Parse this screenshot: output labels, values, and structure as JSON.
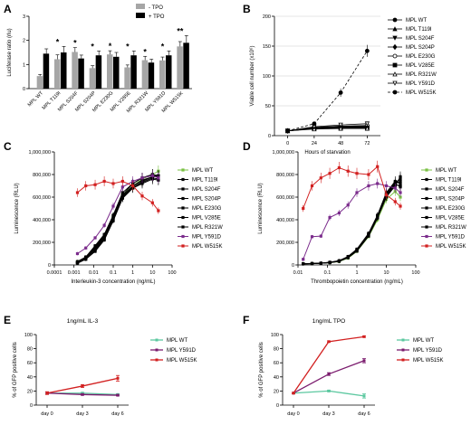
{
  "panels": {
    "A": {
      "letter": "A",
      "type": "bar",
      "ylabel": "Luciferase ratio (rlu)",
      "yticks": [
        "0",
        "1",
        "2",
        "3"
      ],
      "ylim": [
        0,
        3
      ],
      "categories": [
        "MPL WT",
        "MPL T119I",
        "MPL S204F",
        "MPL S204P",
        "MPL E230G",
        "MPL V285E",
        "MPL R321W",
        "MPL Y591D",
        "MPL W515K"
      ],
      "series": [
        {
          "name": "- TPO",
          "color": "#a6a6a6",
          "values": [
            0.52,
            1.22,
            1.52,
            0.85,
            1.42,
            0.88,
            1.18,
            1.17,
            1.75
          ],
          "err": [
            0.07,
            0.18,
            0.18,
            0.1,
            0.15,
            0.1,
            0.16,
            0.14,
            0.2
          ]
        },
        {
          "name": "+ TPO",
          "color": "#000000",
          "values": [
            1.45,
            1.5,
            1.25,
            1.38,
            1.32,
            1.38,
            1.08,
            1.38,
            1.9
          ],
          "err": [
            0.2,
            0.25,
            0.14,
            0.18,
            0.18,
            0.18,
            0.14,
            0.18,
            0.3
          ]
        }
      ],
      "stars": [
        "",
        "*",
        "*",
        "*",
        "*",
        "*",
        "*",
        "*",
        "**"
      ]
    },
    "B": {
      "letter": "B",
      "type": "line",
      "ylabel": "Viable cell number (x10⁶)",
      "xlabel": "Hours of starvation",
      "xticks": [
        "0",
        "24",
        "48",
        "72"
      ],
      "yticks": [
        "0",
        "50",
        "100",
        "150",
        "200"
      ],
      "x": [
        0,
        24,
        48,
        72
      ],
      "xlim": [
        -12,
        84
      ],
      "ylim": [
        0,
        200
      ],
      "series": [
        {
          "name": "MPL WT",
          "marker": "circle",
          "dash": false,
          "values": [
            8,
            12,
            14,
            15
          ]
        },
        {
          "name": "MPL T119I",
          "marker": "triangle",
          "dash": false,
          "values": [
            8,
            13,
            15,
            16
          ]
        },
        {
          "name": "MPL S204F",
          "marker": "triangle-down",
          "dash": false,
          "values": [
            8,
            12,
            13,
            14
          ]
        },
        {
          "name": "MPL S204P",
          "marker": "diamond",
          "dash": false,
          "values": [
            8,
            13,
            14,
            15
          ]
        },
        {
          "name": "MPL E230G",
          "marker": "circle-open",
          "dash": false,
          "values": [
            8,
            14,
            16,
            17
          ]
        },
        {
          "name": "MPL V285E",
          "marker": "square",
          "dash": false,
          "values": [
            8,
            12,
            13,
            13
          ]
        },
        {
          "name": "MPL R321W",
          "marker": "triangle-open",
          "dash": false,
          "values": [
            8,
            11,
            12,
            12
          ]
        },
        {
          "name": "MPL Y591D",
          "marker": "triangle-down-open",
          "dash": false,
          "values": [
            8,
            15,
            18,
            20
          ]
        },
        {
          "name": "MPL W515K",
          "marker": "circle",
          "dash": true,
          "values": [
            8,
            20,
            72,
            142
          ],
          "err": [
            1,
            2,
            7,
            10
          ]
        }
      ]
    },
    "C": {
      "letter": "C",
      "type": "line",
      "ylabel": "Luminescence (RLU)",
      "xlabel": "Interleukin-3 concentration (ng/mL)",
      "xscale": "log",
      "xticks": [
        "0.0001",
        "0.001",
        "0.01",
        "0.1",
        "1",
        "10",
        "100"
      ],
      "yticks": [
        "0",
        "200,000",
        "400,000",
        "600,000",
        "800,000",
        "1,000,000"
      ],
      "x": [
        0.0015,
        0.004,
        0.012,
        0.035,
        0.1,
        0.3,
        1,
        3,
        10,
        20
      ],
      "ylim": [
        0,
        1000000
      ],
      "series": [
        {
          "name": "MPL WT",
          "color": "#7ac143",
          "values": [
            30000,
            60000,
            150000,
            250000,
            420000,
            620000,
            700000,
            760000,
            800000,
            830000
          ]
        },
        {
          "name": "MPL T119I",
          "color": "#000000",
          "values": [
            20000,
            60000,
            140000,
            240000,
            410000,
            600000,
            690000,
            740000,
            780000,
            790000
          ]
        },
        {
          "name": "MPL S204F",
          "color": "#000000",
          "values": [
            25000,
            70000,
            160000,
            260000,
            430000,
            620000,
            720000,
            770000,
            800000,
            780000
          ]
        },
        {
          "name": "MPL S204P",
          "color": "#000000",
          "values": [
            20000,
            50000,
            130000,
            230000,
            400000,
            600000,
            680000,
            730000,
            770000,
            760000
          ]
        },
        {
          "name": "MPL E230G",
          "color": "#000000",
          "values": [
            30000,
            70000,
            170000,
            270000,
            440000,
            640000,
            720000,
            770000,
            800000,
            790000
          ]
        },
        {
          "name": "MPL V285E",
          "color": "#000000",
          "values": [
            20000,
            60000,
            150000,
            250000,
            420000,
            610000,
            700000,
            750000,
            780000,
            780000
          ]
        },
        {
          "name": "MPL R321W",
          "color": "#000000",
          "values": [
            15000,
            50000,
            120000,
            220000,
            390000,
            590000,
            680000,
            720000,
            760000,
            750000
          ]
        },
        {
          "name": "MPL Y591D",
          "color": "#7b2c8c",
          "values": [
            100000,
            150000,
            240000,
            350000,
            520000,
            690000,
            740000,
            770000,
            790000,
            770000
          ]
        },
        {
          "name": "MPL W515K",
          "color": "#d22020",
          "values": [
            640000,
            700000,
            710000,
            740000,
            720000,
            740000,
            700000,
            610000,
            550000,
            480000
          ]
        }
      ]
    },
    "D": {
      "letter": "D",
      "type": "line",
      "ylabel": "Luminescence (RLU)",
      "xlabel": "Thrombopoietin concentration (ng/mL)",
      "xscale": "log",
      "xticks": [
        "0.01",
        "0.1",
        "1",
        "10",
        "100"
      ],
      "yticks": [
        "0",
        "200,000",
        "400,000",
        "600,000",
        "800,000",
        "1,000,000"
      ],
      "x": [
        0.015,
        0.03,
        0.06,
        0.12,
        0.25,
        0.5,
        1,
        2.5,
        5,
        10,
        20,
        30
      ],
      "ylim": [
        0,
        1000000
      ],
      "series": [
        {
          "name": "MPL WT",
          "color": "#7ac143",
          "values": [
            10000,
            12000,
            15000,
            20000,
            30000,
            60000,
            120000,
            250000,
            400000,
            580000,
            650000,
            600000
          ]
        },
        {
          "name": "MPL T119I",
          "color": "#000000",
          "values": [
            10000,
            12000,
            15000,
            22000,
            35000,
            70000,
            130000,
            270000,
            430000,
            620000,
            720000,
            690000
          ]
        },
        {
          "name": "MPL S204F",
          "color": "#000000",
          "values": [
            10000,
            12000,
            16000,
            24000,
            38000,
            75000,
            140000,
            280000,
            440000,
            640000,
            740000,
            720000
          ]
        },
        {
          "name": "MPL S204P",
          "color": "#000000",
          "values": [
            10000,
            12000,
            15000,
            21000,
            33000,
            65000,
            125000,
            260000,
            420000,
            610000,
            710000,
            700000
          ]
        },
        {
          "name": "MPL E230G",
          "color": "#000000",
          "values": [
            10000,
            12000,
            16000,
            23000,
            36000,
            72000,
            135000,
            275000,
            430000,
            630000,
            730000,
            760000
          ]
        },
        {
          "name": "MPL V285E",
          "color": "#000000",
          "values": [
            10000,
            12000,
            15000,
            21000,
            34000,
            68000,
            128000,
            265000,
            425000,
            620000,
            720000,
            740000
          ]
        },
        {
          "name": "MPL R321W",
          "color": "#000000",
          "values": [
            10000,
            12000,
            15000,
            20000,
            32000,
            64000,
            122000,
            255000,
            415000,
            600000,
            700000,
            780000
          ]
        },
        {
          "name": "MPL Y591D",
          "color": "#7b2c8c",
          "values": [
            50000,
            250000,
            255000,
            420000,
            460000,
            530000,
            640000,
            700000,
            720000,
            700000,
            680000,
            640000
          ]
        },
        {
          "name": "MPL W515K",
          "color": "#d22020",
          "values": [
            500000,
            700000,
            770000,
            810000,
            860000,
            830000,
            810000,
            800000,
            870000,
            620000,
            560000,
            520000
          ]
        }
      ]
    },
    "E": {
      "letter": "E",
      "type": "line",
      "title": "1ng/mL IL-3",
      "ylabel": "% of GFP positive cells",
      "categories": [
        "day 0",
        "day 3",
        "day 6"
      ],
      "yticks": [
        "0",
        "20",
        "40",
        "60",
        "80",
        "100"
      ],
      "ylim": [
        0,
        100
      ],
      "series": [
        {
          "name": "MPL WT",
          "color": "#5cc8a0",
          "values": [
            17,
            17,
            15
          ],
          "err": [
            1,
            1,
            1
          ]
        },
        {
          "name": "MPL Y591D",
          "color": "#7b1c6e",
          "values": [
            17,
            15,
            14
          ],
          "err": [
            1,
            1,
            1
          ]
        },
        {
          "name": "MPL W515K",
          "color": "#d22020",
          "values": [
            17,
            27,
            38
          ],
          "err": [
            2,
            2,
            4
          ]
        }
      ]
    },
    "F": {
      "letter": "F",
      "type": "line",
      "title": "1ng/mL TPO",
      "ylabel": "% of GFP positive cells",
      "categories": [
        "day 0",
        "day 3",
        "day 6"
      ],
      "yticks": [
        "0",
        "20",
        "40",
        "60",
        "80",
        "100"
      ],
      "ylim": [
        0,
        100
      ],
      "series": [
        {
          "name": "MPL WT",
          "color": "#5cc8a0",
          "values": [
            17,
            20,
            13
          ],
          "err": [
            1,
            1,
            3
          ]
        },
        {
          "name": "MPL Y591D",
          "color": "#7b1c6e",
          "values": [
            17,
            44,
            63
          ],
          "err": [
            1,
            2,
            3
          ]
        },
        {
          "name": "MPL W515K",
          "color": "#d22020",
          "values": [
            17,
            90,
            97
          ],
          "err": [
            1,
            1,
            1
          ]
        }
      ]
    }
  },
  "chart_data": [
    {
      "panel": "A",
      "type": "bar",
      "ylabel": "Luciferase ratio (rlu)",
      "ylim": [
        0,
        3
      ],
      "categories": [
        "MPL WT",
        "MPL T119I",
        "MPL S204F",
        "MPL S204P",
        "MPL E230G",
        "MPL V285E",
        "MPL R321W",
        "MPL Y591D",
        "MPL W515K"
      ],
      "series": [
        {
          "name": "- TPO",
          "values": [
            0.52,
            1.22,
            1.52,
            0.85,
            1.42,
            0.88,
            1.18,
            1.17,
            1.75
          ]
        },
        {
          "name": "+ TPO",
          "values": [
            1.45,
            1.5,
            1.25,
            1.38,
            1.32,
            1.38,
            1.08,
            1.38,
            1.9
          ]
        }
      ]
    },
    {
      "panel": "B",
      "type": "line",
      "xlabel": "Hours of starvation",
      "ylabel": "Viable cell number (x10⁶)",
      "x": [
        0,
        24,
        48,
        72
      ],
      "ylim": [
        0,
        200
      ]
    },
    {
      "panel": "C",
      "type": "line",
      "xlabel": "Interleukin-3 concentration (ng/mL)",
      "ylabel": "Luminescence (RLU)",
      "xscale": "log",
      "ylim": [
        0,
        1000000
      ]
    },
    {
      "panel": "D",
      "type": "line",
      "xlabel": "Thrombopoietin concentration (ng/mL)",
      "ylabel": "Luminescence (RLU)",
      "xscale": "log",
      "ylim": [
        0,
        1000000
      ]
    },
    {
      "panel": "E",
      "type": "line",
      "title": "1ng/mL IL-3",
      "ylabel": "% of GFP positive cells",
      "categories": [
        "day 0",
        "day 3",
        "day 6"
      ],
      "ylim": [
        0,
        100
      ]
    },
    {
      "panel": "F",
      "type": "line",
      "title": "1ng/mL TPO",
      "ylabel": "% of GFP positive cells",
      "categories": [
        "day 0",
        "day 3",
        "day 6"
      ],
      "ylim": [
        0,
        100
      ]
    }
  ]
}
